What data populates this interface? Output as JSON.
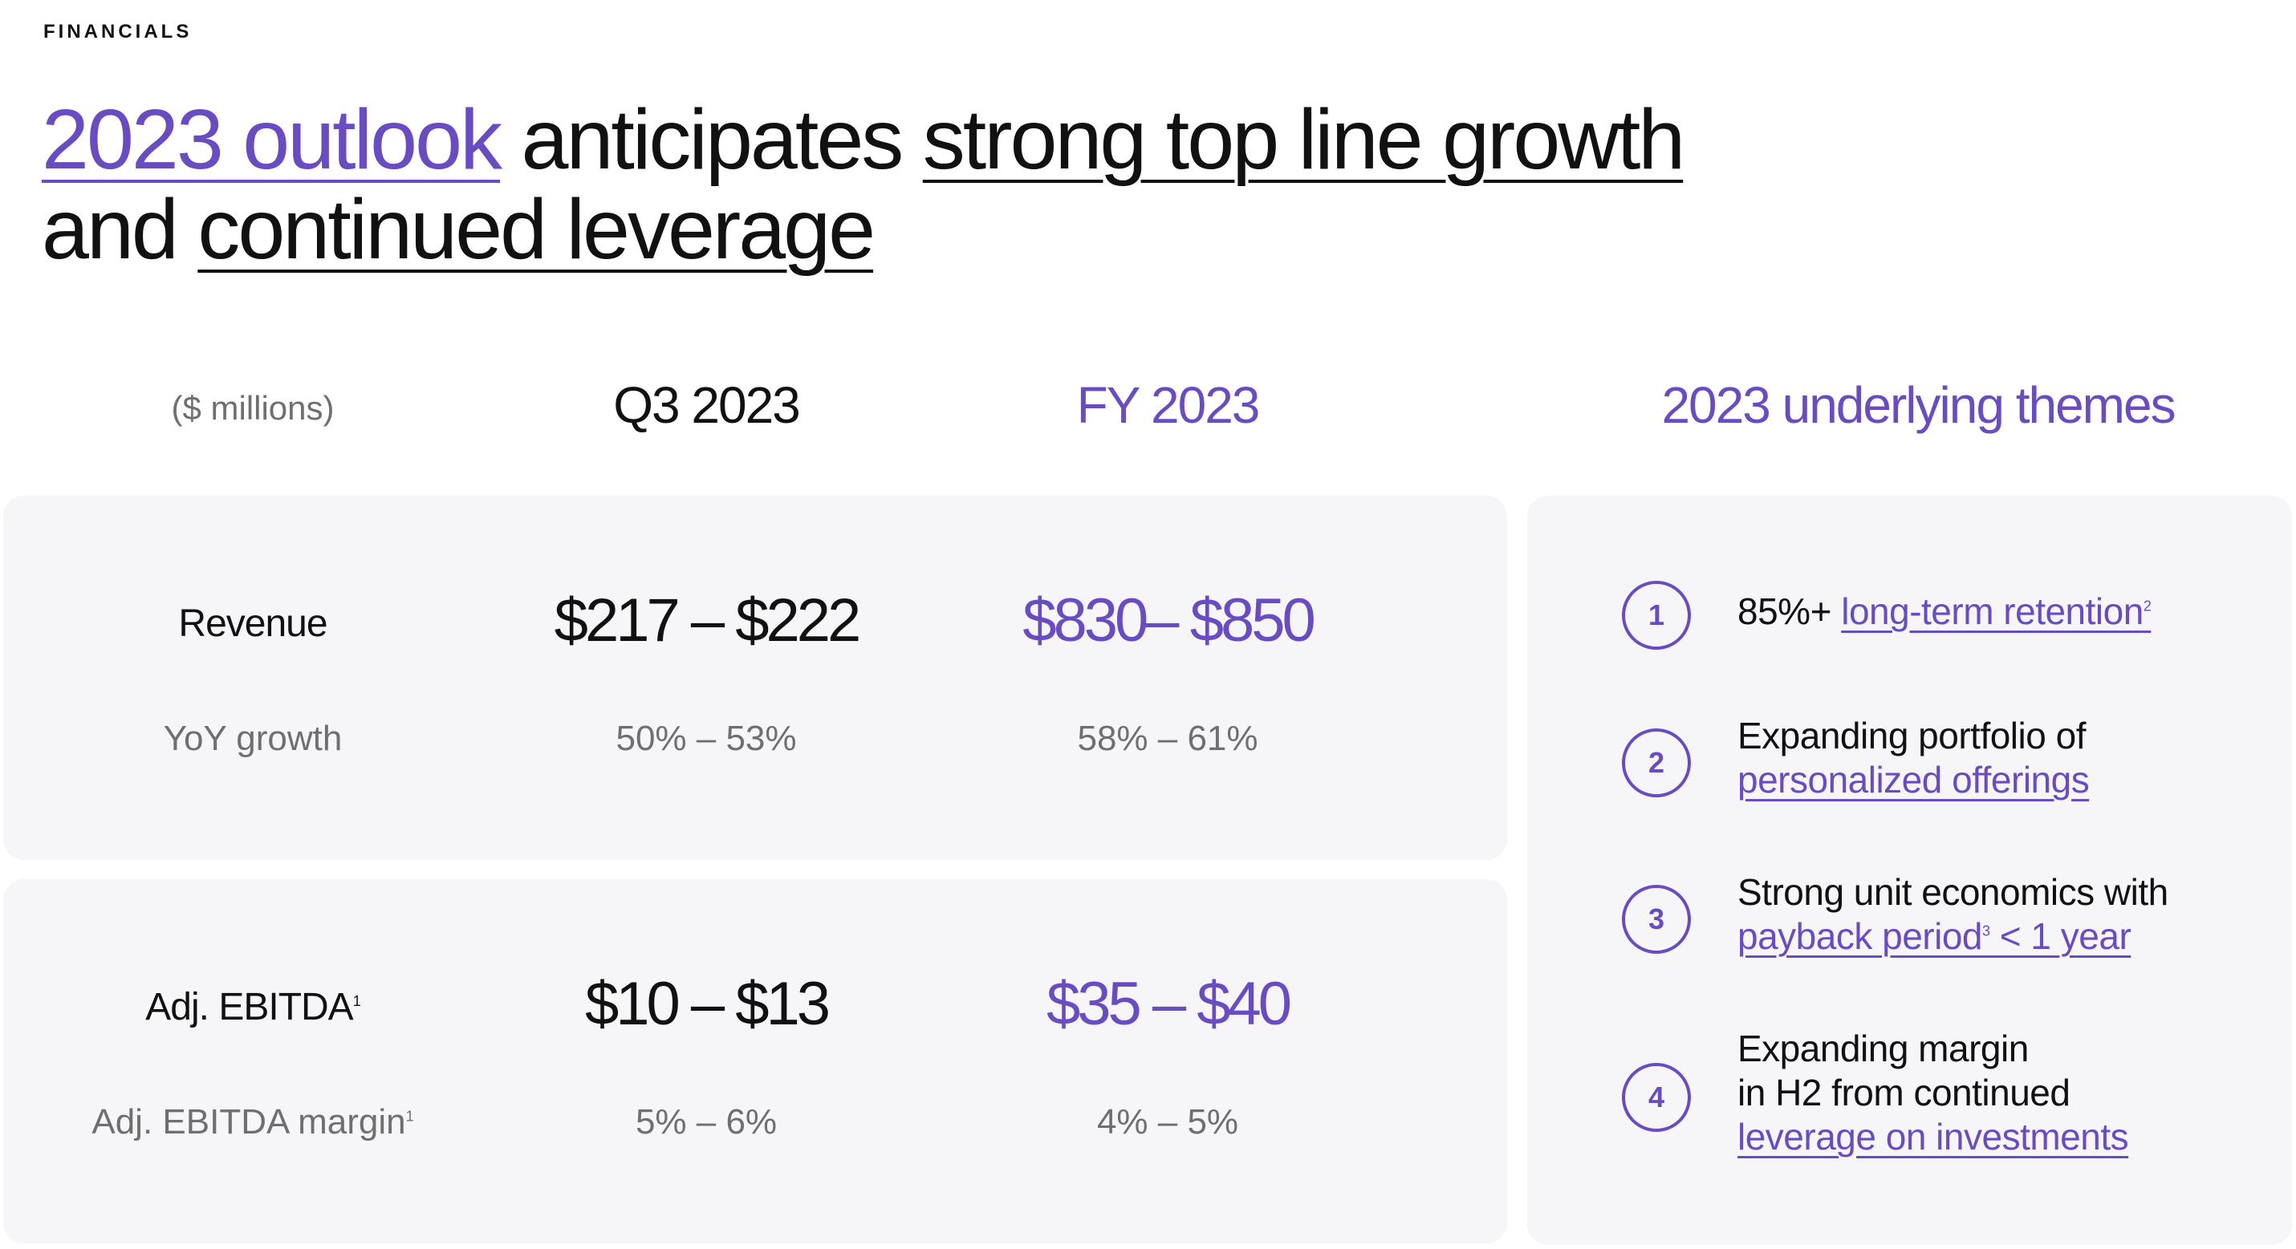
{
  "section_label": "FINANCIALS",
  "headline": {
    "line1": [
      {
        "text": "2023 outlook",
        "style": "purple-underline"
      },
      {
        "text": " anticipates ",
        "style": "plain"
      },
      {
        "text": "strong top line growth",
        "style": "underline"
      }
    ],
    "line2": [
      {
        "text": "and ",
        "style": "plain"
      },
      {
        "text": "continued leverage",
        "style": "underline"
      }
    ]
  },
  "table": {
    "units_label": "($ millions)",
    "col_q3": "Q3 2023",
    "col_fy": "FY 2023",
    "revenue": {
      "label": "Revenue",
      "q3": "$217 – $222",
      "fy": "$830– $850",
      "growth_label": "YoY growth",
      "growth_q3": "50% – 53%",
      "growth_fy": "58% – 61%"
    },
    "ebitda": {
      "label": "Adj. EBITDA",
      "label_footnote": "1",
      "q3": "$10 – $13",
      "fy": "$35 – $40",
      "margin_label": "Adj. EBITDA margin",
      "margin_footnote": "1",
      "margin_q3": "5% – 6%",
      "margin_fy": "4% – 5%"
    }
  },
  "themes": {
    "title": "2023 underlying themes",
    "items": [
      {
        "num": "1",
        "pre": "85%+ ",
        "link": "long-term retention",
        "footnote": "2"
      },
      {
        "num": "2",
        "pre": "Expanding portfolio of",
        "link": "personalized offerings"
      },
      {
        "num": "3",
        "pre": "Strong unit economics with",
        "link_a": "payback period",
        "footnote": "3",
        "link_b": " < 1 year"
      },
      {
        "num": "4",
        "pre_a": "Expanding margin",
        "pre_b": "in H2 from continued",
        "link": "leverage on investments"
      }
    ]
  },
  "colors": {
    "accent_purple": "#6a4cc2",
    "card_background": "#f6f6f8",
    "muted_text": "#6f6f6f"
  }
}
